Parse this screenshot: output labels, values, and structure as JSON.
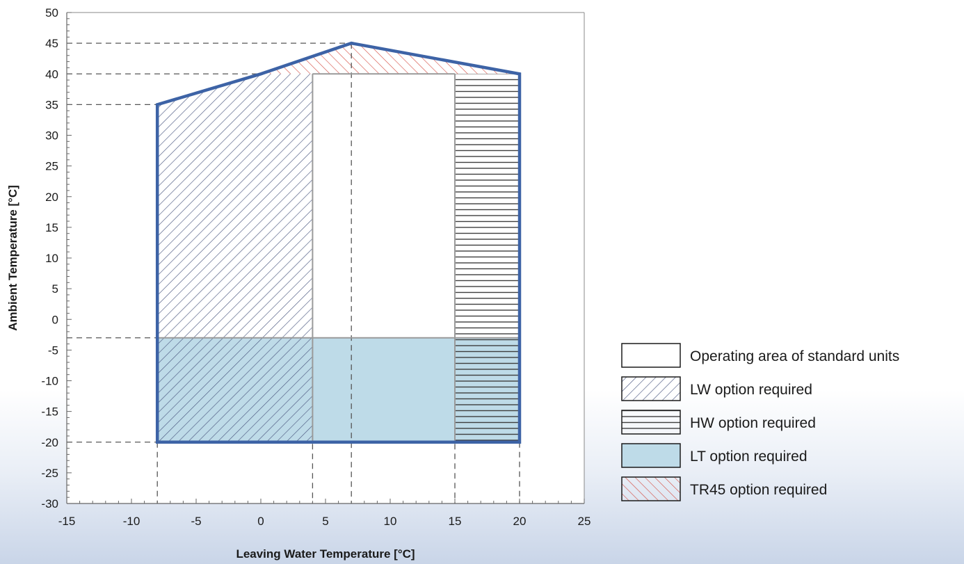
{
  "chart_data": {
    "type": "area",
    "xlabel": "Leaving Water Temperature [°C]",
    "ylabel": "Ambient Temperature [°C]",
    "xlim": [
      -15,
      25
    ],
    "ylim": [
      -30,
      50
    ],
    "x_ticks": [
      -15,
      -10,
      -5,
      0,
      5,
      10,
      15,
      20,
      25
    ],
    "y_ticks": [
      50,
      45,
      40,
      35,
      30,
      25,
      20,
      15,
      10,
      5,
      0,
      -5,
      -10,
      -15,
      -20,
      -25,
      -30
    ],
    "grid": false,
    "legend_position": "right",
    "envelope": [
      [
        -8,
        -20
      ],
      [
        -8,
        35
      ],
      [
        0,
        40
      ],
      [
        7,
        45
      ],
      [
        20,
        40
      ],
      [
        20,
        -20
      ]
    ],
    "regions": [
      {
        "key": "standard",
        "name": "Operating area of standard units",
        "pattern": "none",
        "polygon": [
          [
            4,
            -3
          ],
          [
            4,
            40
          ],
          [
            15,
            40
          ],
          [
            15,
            -3
          ]
        ]
      },
      {
        "key": "lw",
        "name": "LW option required",
        "pattern": "diagonal",
        "polygon": [
          [
            -8,
            -20
          ],
          [
            -8,
            35
          ],
          [
            0,
            40
          ],
          [
            4,
            40
          ],
          [
            4,
            -20
          ]
        ]
      },
      {
        "key": "hw",
        "name": "HW option required",
        "pattern": "horizontal",
        "polygon": [
          [
            15,
            -20
          ],
          [
            15,
            40
          ],
          [
            20,
            40
          ],
          [
            20,
            -20
          ]
        ]
      },
      {
        "key": "lt",
        "name": "LT option required",
        "pattern": "fill",
        "polygon": [
          [
            -8,
            -20
          ],
          [
            -8,
            -3
          ],
          [
            20,
            -3
          ],
          [
            20,
            -20
          ]
        ]
      },
      {
        "key": "tr45",
        "name": "TR45 option required",
        "pattern": "red-diagonal",
        "polygon": [
          [
            0,
            40
          ],
          [
            7,
            45
          ],
          [
            20,
            40
          ]
        ]
      }
    ],
    "reference_lines": {
      "horizontal": [
        {
          "y": 45,
          "x_end": 7
        },
        {
          "y": 40,
          "x_end": 0
        },
        {
          "y": 35,
          "x_end": -8
        },
        {
          "y": -3,
          "x_end": -8
        },
        {
          "y": -20,
          "x_end": -8
        }
      ],
      "vertical": [
        {
          "x": -8,
          "y_end": -20
        },
        {
          "x": 4,
          "y_end": 40
        },
        {
          "x": 7,
          "y_end": 45
        },
        {
          "x": 15,
          "y_end": 40
        },
        {
          "x": 20,
          "y_end": -20
        }
      ]
    }
  },
  "colors": {
    "envelope": "#3d63a6",
    "lw_hatch": "#4d5a82",
    "hw_hatch": "#3e3e3e",
    "lt_fill": "#bedbe8",
    "tr45_hatch": "#d4493e",
    "inner_line": "#9a9a9a",
    "dash": "#555555"
  }
}
